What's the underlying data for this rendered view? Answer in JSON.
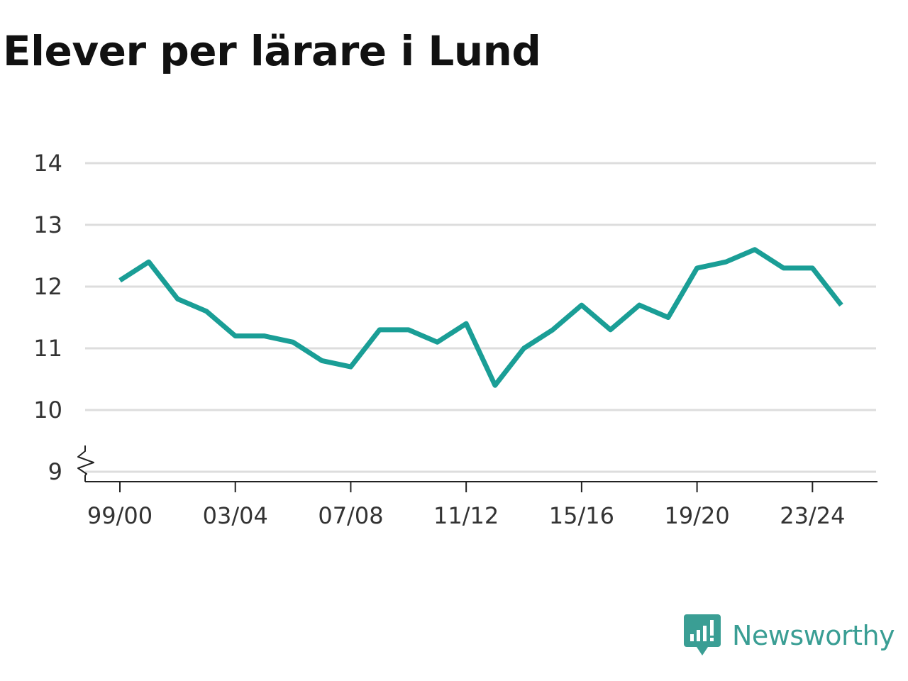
{
  "title": "Elever per lärare i Lund",
  "brand": {
    "name": "Newsworthy",
    "color": "#3a9e94",
    "icon": "newsworthy-logo-icon"
  },
  "chart_data": {
    "type": "line",
    "title": "Elever per lärare i Lund",
    "xlabel": "",
    "ylabel": "",
    "x_tick_labels": [
      "99/00",
      "03/04",
      "07/08",
      "11/12",
      "15/16",
      "19/20",
      "23/24"
    ],
    "y_tick_labels": [
      "9",
      "10",
      "11",
      "12",
      "13",
      "14"
    ],
    "ylim": [
      9,
      14
    ],
    "y_axis_break": true,
    "grid": true,
    "legend": "none",
    "line_color": "#1a9e96",
    "x": [
      "99/00",
      "00/01",
      "01/02",
      "02/03",
      "03/04",
      "04/05",
      "05/06",
      "06/07",
      "07/08",
      "08/09",
      "09/10",
      "10/11",
      "11/12",
      "12/13",
      "13/14",
      "14/15",
      "15/16",
      "16/17",
      "17/18",
      "18/19",
      "19/20",
      "20/21",
      "21/22",
      "22/23",
      "23/24",
      "24/25"
    ],
    "series": [
      {
        "values": [
          12.1,
          12.4,
          11.8,
          11.6,
          11.2,
          11.2,
          11.1,
          10.8,
          10.7,
          11.3,
          11.3,
          11.1,
          11.4,
          10.4,
          11.0,
          11.3,
          11.7,
          11.3,
          11.7,
          11.5,
          12.3,
          12.4,
          12.6,
          12.3,
          12.3,
          11.7
        ]
      }
    ]
  }
}
